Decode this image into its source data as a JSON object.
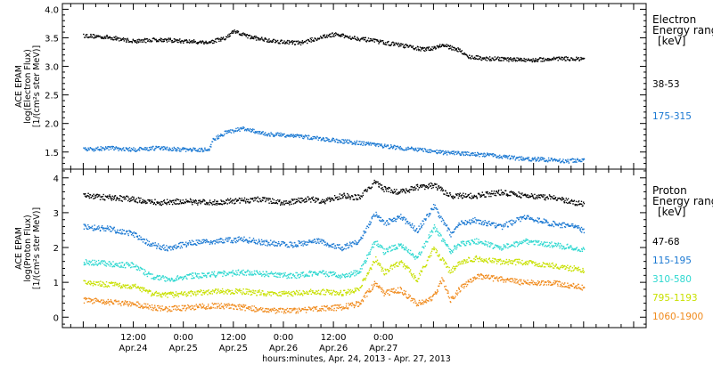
{
  "chart_data": [
    {
      "type": "scatter",
      "panel": "electron",
      "ylabel_lines": [
        "ACE EPAM",
        "log(Electron Flux)",
        "[1/(cm²s ster MeV)]"
      ],
      "ylim": [
        1.2,
        4.1
      ],
      "yticks": [
        "1.5",
        "2.0",
        "2.5",
        "3.0",
        "3.5",
        "4.0"
      ],
      "legend_title_lines": [
        "Electron",
        "Energy ranges",
        "[keV]"
      ],
      "series": [
        {
          "name": "38-53",
          "color": "#000000",
          "x": [
            0,
            6,
            12,
            18,
            24,
            30,
            34,
            36,
            40,
            46,
            52,
            56,
            60,
            64,
            70,
            76,
            82,
            86,
            90,
            92,
            96,
            102,
            108,
            114,
            120
          ],
          "y": [
            3.55,
            3.52,
            3.45,
            3.48,
            3.45,
            3.43,
            3.5,
            3.62,
            3.52,
            3.45,
            3.42,
            3.5,
            3.57,
            3.52,
            3.45,
            3.38,
            3.3,
            3.38,
            3.3,
            3.18,
            3.15,
            3.13,
            3.12,
            3.15,
            3.13
          ]
        },
        {
          "name": "175-315",
          "color": "#1a78d2",
          "x": [
            0,
            6,
            12,
            18,
            24,
            30,
            31,
            34,
            38,
            44,
            50,
            56,
            62,
            68,
            74,
            80,
            86,
            92,
            98,
            104,
            110,
            116,
            120
          ],
          "y": [
            1.55,
            1.58,
            1.55,
            1.58,
            1.55,
            1.55,
            1.72,
            1.85,
            1.92,
            1.82,
            1.8,
            1.75,
            1.7,
            1.65,
            1.6,
            1.55,
            1.5,
            1.48,
            1.45,
            1.4,
            1.38,
            1.35,
            1.38
          ]
        }
      ]
    },
    {
      "type": "scatter",
      "panel": "proton",
      "ylabel_lines": [
        "ACE EPAM",
        "log(Proton Flux)",
        "[1/(cm²s ster MeV)]"
      ],
      "ylim": [
        -0.3,
        4.25
      ],
      "yticks": [
        "0",
        "1",
        "2",
        "3",
        "4"
      ],
      "legend_title_lines": [
        "Proton",
        "Energy ranges",
        "[keV]"
      ],
      "series": [
        {
          "name": "47-68",
          "color": "#000000",
          "x": [
            0,
            6,
            12,
            18,
            24,
            30,
            36,
            42,
            48,
            54,
            58,
            62,
            66,
            70,
            72,
            76,
            80,
            84,
            88,
            94,
            100,
            106,
            112,
            118,
            120
          ],
          "y": [
            3.5,
            3.45,
            3.4,
            3.3,
            3.35,
            3.3,
            3.35,
            3.4,
            3.3,
            3.4,
            3.35,
            3.5,
            3.45,
            3.9,
            3.7,
            3.6,
            3.75,
            3.8,
            3.5,
            3.5,
            3.6,
            3.5,
            3.45,
            3.3,
            3.25
          ]
        },
        {
          "name": "115-195",
          "color": "#1a78d2",
          "x": [
            0,
            6,
            12,
            16,
            20,
            26,
            32,
            38,
            44,
            50,
            56,
            62,
            66,
            70,
            72,
            76,
            80,
            84,
            88,
            90,
            94,
            100,
            106,
            112,
            118,
            120
          ],
          "y": [
            2.6,
            2.55,
            2.4,
            2.1,
            2.0,
            2.15,
            2.2,
            2.25,
            2.15,
            2.1,
            2.2,
            2.0,
            2.2,
            3.0,
            2.7,
            2.9,
            2.5,
            3.2,
            2.4,
            2.7,
            2.8,
            2.6,
            2.9,
            2.7,
            2.6,
            2.5
          ]
        },
        {
          "name": "310-580",
          "color": "#2ed8d0",
          "x": [
            0,
            6,
            12,
            16,
            20,
            26,
            32,
            38,
            44,
            50,
            56,
            62,
            66,
            70,
            72,
            76,
            80,
            84,
            88,
            90,
            94,
            100,
            106,
            112,
            118,
            120
          ],
          "y": [
            1.6,
            1.55,
            1.5,
            1.2,
            1.1,
            1.2,
            1.25,
            1.3,
            1.25,
            1.2,
            1.3,
            1.2,
            1.3,
            2.2,
            1.9,
            2.1,
            1.7,
            2.6,
            1.9,
            2.1,
            2.2,
            2.0,
            2.2,
            2.1,
            2.0,
            1.95
          ]
        },
        {
          "name": "795-1193",
          "color": "#c8e000",
          "x": [
            0,
            6,
            12,
            16,
            20,
            26,
            32,
            38,
            44,
            50,
            56,
            62,
            66,
            70,
            72,
            76,
            80,
            84,
            88,
            90,
            94,
            100,
            106,
            112,
            118,
            120
          ],
          "y": [
            1.0,
            0.95,
            0.9,
            0.7,
            0.65,
            0.7,
            0.75,
            0.75,
            0.7,
            0.7,
            0.75,
            0.7,
            0.8,
            1.7,
            1.3,
            1.6,
            1.1,
            2.0,
            1.3,
            1.6,
            1.7,
            1.6,
            1.6,
            1.5,
            1.4,
            1.35
          ]
        },
        {
          "name": "1060-1900",
          "color": "#f08a1c",
          "x": [
            0,
            6,
            12,
            16,
            20,
            26,
            32,
            38,
            44,
            50,
            56,
            62,
            66,
            70,
            72,
            76,
            80,
            84,
            86,
            88,
            90,
            94,
            100,
            106,
            112,
            118,
            120
          ],
          "y": [
            0.5,
            0.45,
            0.4,
            0.3,
            0.25,
            0.3,
            0.35,
            0.3,
            0.2,
            0.2,
            0.25,
            0.3,
            0.4,
            1.0,
            0.7,
            0.8,
            0.4,
            0.6,
            1.1,
            0.5,
            0.8,
            1.2,
            1.1,
            1.0,
            1.0,
            0.9,
            0.85
          ]
        }
      ]
    }
  ],
  "x_axis": {
    "unit": "hours since Apr. 24, 2013 00:00",
    "xlim": [
      -5,
      135
    ],
    "minor_step": 3,
    "major_ticks": [
      {
        "x": 12,
        "time": "12:00",
        "date": "Apr.24"
      },
      {
        "x": 24,
        "time": "0:00",
        "date": "Apr.25"
      },
      {
        "x": 36,
        "time": "12:00",
        "date": "Apr.25"
      },
      {
        "x": 48,
        "time": "0:00",
        "date": "Apr.26"
      },
      {
        "x": 60,
        "time": "12:00",
        "date": "Apr.26"
      },
      {
        "x": 72,
        "time": "0:00",
        "date": "Apr.27"
      }
    ],
    "title": "hours:minutes, Apr. 24, 2013 - Apr. 27, 2013"
  }
}
